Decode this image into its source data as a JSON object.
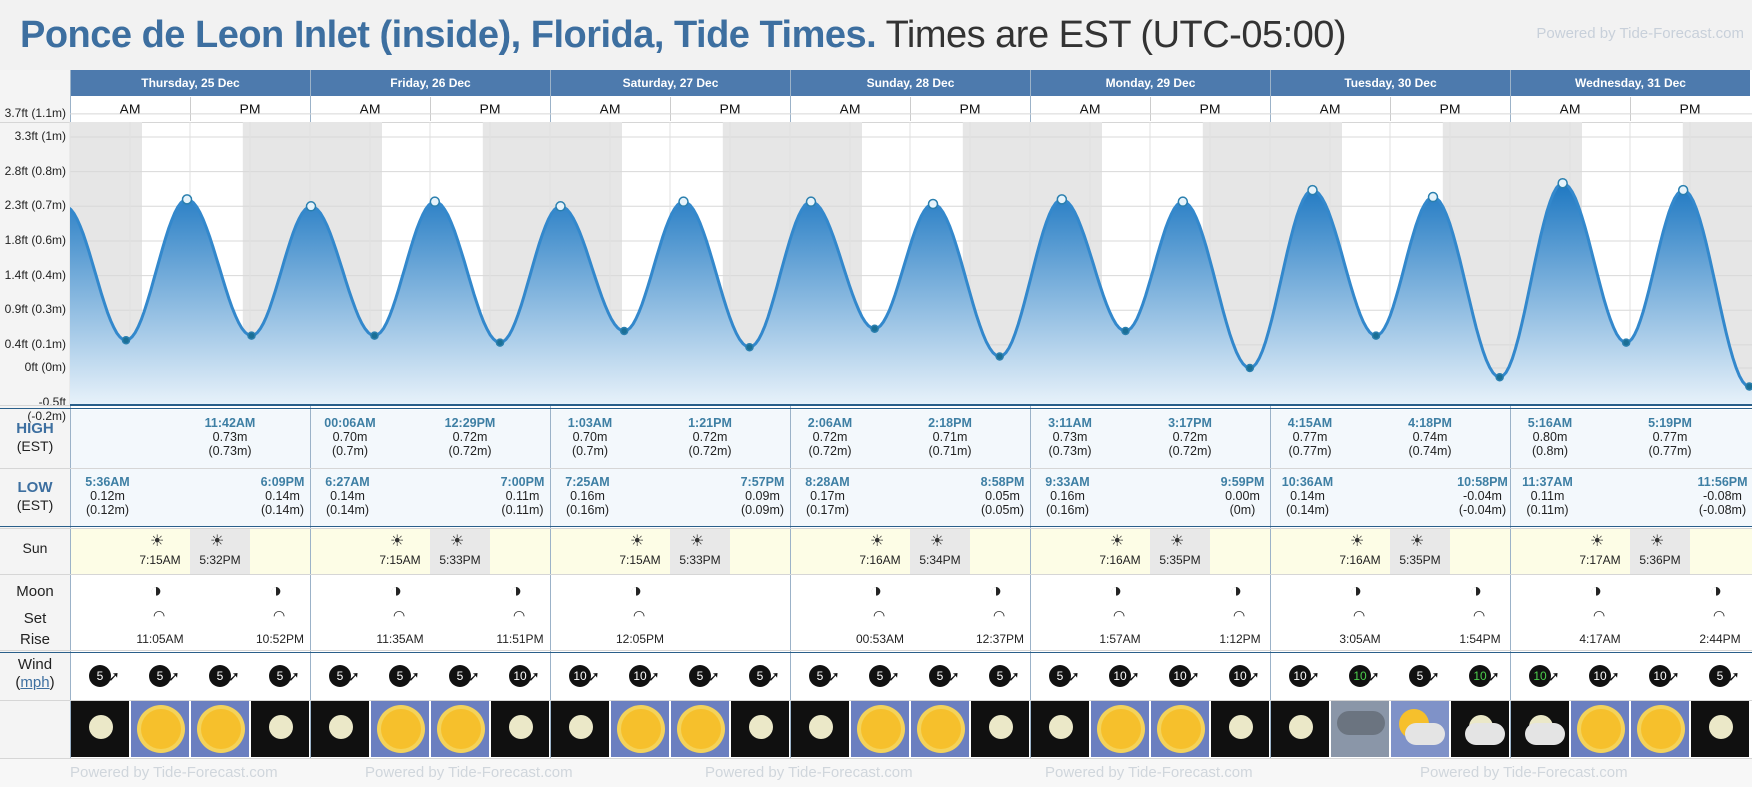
{
  "header": {
    "place": "Ponce de Leon Inlet (inside), Florida, Tide Times.",
    "timezone": "Times are EST (UTC-05:00)",
    "powered": "Powered by Tide-Forecast.com"
  },
  "yaxis": [
    "3.7ft (1.1m)",
    "3.3ft (1m)",
    "2.8ft (0.8m)",
    "2.3ft (0.7m)",
    "1.8ft (0.6m)",
    "1.4ft (0.4m)",
    "0.9ft (0.3m)",
    "0.4ft (0.1m)",
    "0ft (0m)",
    "-0.5ft (-0.2m)"
  ],
  "labels": {
    "high": "HIGH",
    "high_tz": "(EST)",
    "low": "LOW",
    "low_tz": "(EST)",
    "sun": "Sun",
    "moon": "Moon",
    "set": "Set",
    "rise": "Rise",
    "wind": "Wind",
    "wind_unit": "mph",
    "am": "AM",
    "pm": "PM"
  },
  "days": [
    {
      "name": "Thursday, 25 Dec",
      "high": [
        {
          "time": "",
          "h": "",
          "m": ""
        },
        {
          "time": "11:42AM",
          "h": "0.73m",
          "m": "(0.73m)"
        }
      ],
      "low": [
        {
          "time": "5:36AM",
          "h": "0.12m",
          "m": "(0.12m)"
        },
        {
          "time": "6:09PM",
          "h": "0.14m",
          "m": "(0.14m)"
        }
      ],
      "sunrise": "7:15AM",
      "sunset": "5:32PM",
      "moon": "11:05AM",
      "moon2": "10:52PM"
    },
    {
      "name": "Friday, 26 Dec",
      "high": [
        {
          "time": "00:06AM",
          "h": "0.70m",
          "m": "(0.7m)"
        },
        {
          "time": "12:29PM",
          "h": "0.72m",
          "m": "(0.72m)"
        }
      ],
      "low": [
        {
          "time": "6:27AM",
          "h": "0.14m",
          "m": "(0.14m)"
        },
        {
          "time": "7:00PM",
          "h": "0.11m",
          "m": "(0.11m)"
        }
      ],
      "sunrise": "7:15AM",
      "sunset": "5:33PM",
      "moon": "11:35AM",
      "moon2": "11:51PM"
    },
    {
      "name": "Saturday, 27 Dec",
      "high": [
        {
          "time": "1:03AM",
          "h": "0.70m",
          "m": "(0.7m)"
        },
        {
          "time": "1:21PM",
          "h": "0.72m",
          "m": "(0.72m)"
        }
      ],
      "low": [
        {
          "time": "7:25AM",
          "h": "0.16m",
          "m": "(0.16m)"
        },
        {
          "time": "7:57PM",
          "h": "0.09m",
          "m": "(0.09m)"
        }
      ],
      "sunrise": "7:15AM",
      "sunset": "5:33PM",
      "moon": "12:05PM",
      "moon2": ""
    },
    {
      "name": "Sunday, 28 Dec",
      "high": [
        {
          "time": "2:06AM",
          "h": "0.72m",
          "m": "(0.72m)"
        },
        {
          "time": "2:18PM",
          "h": "0.71m",
          "m": "(0.71m)"
        }
      ],
      "low": [
        {
          "time": "8:28AM",
          "h": "0.17m",
          "m": "(0.17m)"
        },
        {
          "time": "8:58PM",
          "h": "0.05m",
          "m": "(0.05m)"
        }
      ],
      "sunrise": "7:16AM",
      "sunset": "5:34PM",
      "moon": "00:53AM",
      "moon2": "12:37PM"
    },
    {
      "name": "Monday, 29 Dec",
      "high": [
        {
          "time": "3:11AM",
          "h": "0.73m",
          "m": "(0.73m)"
        },
        {
          "time": "3:17PM",
          "h": "0.72m",
          "m": "(0.72m)"
        }
      ],
      "low": [
        {
          "time": "9:33AM",
          "h": "0.16m",
          "m": "(0.16m)"
        },
        {
          "time": "9:59PM",
          "h": "0.00m",
          "m": "(0m)"
        }
      ],
      "sunrise": "7:16AM",
      "sunset": "5:35PM",
      "moon": "1:57AM",
      "moon2": "1:12PM"
    },
    {
      "name": "Tuesday, 30 Dec",
      "high": [
        {
          "time": "4:15AM",
          "h": "0.77m",
          "m": "(0.77m)"
        },
        {
          "time": "4:18PM",
          "h": "0.74m",
          "m": "(0.74m)"
        }
      ],
      "low": [
        {
          "time": "10:36AM",
          "h": "0.14m",
          "m": "(0.14m)"
        },
        {
          "time": "10:58PM",
          "h": "-0.04m",
          "m": "(-0.04m)"
        }
      ],
      "sunrise": "7:16AM",
      "sunset": "5:35PM",
      "moon": "3:05AM",
      "moon2": "1:54PM"
    },
    {
      "name": "Wednesday, 31 Dec",
      "high": [
        {
          "time": "5:16AM",
          "h": "0.80m",
          "m": "(0.8m)"
        },
        {
          "time": "5:19PM",
          "h": "0.77m",
          "m": "(0.77m)"
        }
      ],
      "low": [
        {
          "time": "11:37AM",
          "h": "0.11m",
          "m": "(0.11m)"
        },
        {
          "time": "11:56PM",
          "h": "-0.08m",
          "m": "(-0.08m)"
        }
      ],
      "sunrise": "7:17AM",
      "sunset": "5:36PM",
      "moon": "4:17AM",
      "moon2": "2:44PM"
    }
  ],
  "wind": [
    "5",
    "5",
    "5",
    "5",
    "5",
    "5",
    "5",
    "10",
    "10",
    "10",
    "5",
    "5",
    "5",
    "5",
    "5",
    "5",
    "5",
    "10",
    "10",
    "10",
    "10",
    "10",
    "5",
    "10",
    "10",
    "10",
    "10",
    "5"
  ],
  "wind_green": [
    21,
    23,
    24
  ],
  "weather": [
    "moon",
    "sun",
    "sun",
    "moon",
    "moon",
    "sun",
    "sun",
    "moon",
    "moon",
    "sun",
    "sun",
    "moon",
    "moon",
    "sun",
    "sun",
    "moon",
    "moon",
    "sun",
    "sun",
    "moon",
    "moon",
    "rain",
    "cloud-sun",
    "cloud-moon",
    "cloud-moon",
    "sun",
    "sun",
    "moon"
  ],
  "footer": "Powered by Tide-Forecast.com",
  "colors": {
    "header": "#4d7aad",
    "tide": "#3388cc",
    "dot": "#2a7fae"
  }
}
